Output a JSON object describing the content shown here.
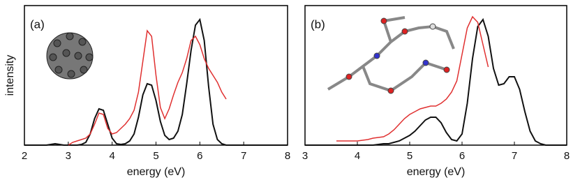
{
  "chart_data": [
    {
      "type": "line",
      "annotation": "(a)",
      "x_label": "energy (eV)",
      "y_label": "intensity",
      "x": [
        2.0,
        2.1,
        2.2,
        2.3,
        2.4,
        2.5,
        2.6,
        2.7,
        2.8,
        2.9,
        3.0,
        3.1,
        3.2,
        3.3,
        3.4,
        3.5,
        3.6,
        3.7,
        3.8,
        3.9,
        4.0,
        4.1,
        4.2,
        4.3,
        4.4,
        4.5,
        4.6,
        4.7,
        4.8,
        4.9,
        5.0,
        5.1,
        5.2,
        5.3,
        5.4,
        5.5,
        5.6,
        5.7,
        5.8,
        5.9,
        6.0,
        6.1,
        6.2,
        6.3,
        6.4,
        6.5,
        6.6,
        6.7,
        6.8,
        6.9,
        7.0,
        7.1,
        7.2,
        7.3,
        7.4,
        7.5,
        7.6,
        7.7,
        7.8,
        7.9,
        8.0
      ],
      "series": [
        {
          "color": "#111111",
          "values": [
            0,
            0,
            0,
            0,
            0,
            0,
            0.005,
            0.01,
            0.005,
            0,
            0,
            0,
            0,
            0.005,
            0.02,
            0.08,
            0.19,
            0.26,
            0.25,
            0.15,
            0.05,
            0.01,
            0.005,
            0.01,
            0.03,
            0.08,
            0.2,
            0.36,
            0.44,
            0.43,
            0.32,
            0.17,
            0.07,
            0.04,
            0.05,
            0.1,
            0.22,
            0.44,
            0.68,
            0.86,
            0.9,
            0.75,
            0.42,
            0.15,
            0.04,
            0.01,
            0,
            0,
            0,
            0,
            0,
            0,
            0,
            0,
            0,
            0,
            0,
            0,
            0,
            0,
            0
          ]
        },
        {
          "color": "#e03030",
          "values": [
            null,
            null,
            null,
            null,
            null,
            null,
            null,
            null,
            null,
            null,
            0.0,
            0.02,
            0.03,
            0.04,
            0.05,
            0.08,
            0.15,
            0.23,
            0.22,
            0.12,
            0.08,
            0.09,
            0.12,
            0.15,
            0.19,
            0.25,
            0.38,
            0.6,
            0.82,
            0.78,
            0.5,
            0.27,
            0.19,
            0.26,
            0.36,
            0.45,
            0.52,
            0.62,
            0.75,
            0.78,
            0.72,
            0.62,
            0.55,
            0.5,
            0.45,
            0.38,
            0.33,
            null,
            null,
            null,
            null,
            null,
            null,
            null,
            null,
            null,
            null,
            null,
            null,
            null,
            null
          ]
        }
      ],
      "xlim": [
        2,
        8
      ],
      "xticks": [
        2,
        3,
        4,
        5,
        6,
        7,
        8
      ],
      "ylim": [
        0,
        1
      ]
    },
    {
      "type": "line",
      "annotation": "(b)",
      "x_label": "energy (eV)",
      "x": [
        3.0,
        3.1,
        3.2,
        3.3,
        3.4,
        3.5,
        3.6,
        3.7,
        3.8,
        3.9,
        4.0,
        4.1,
        4.2,
        4.3,
        4.4,
        4.5,
        4.6,
        4.7,
        4.8,
        4.9,
        5.0,
        5.1,
        5.2,
        5.3,
        5.4,
        5.5,
        5.6,
        5.7,
        5.8,
        5.9,
        6.0,
        6.1,
        6.2,
        6.3,
        6.4,
        6.5,
        6.6,
        6.7,
        6.8,
        6.9,
        7.0,
        7.1,
        7.2,
        7.3,
        7.4,
        7.5,
        7.6,
        7.7,
        7.8,
        7.9,
        8.0
      ],
      "series": [
        {
          "color": "#111111",
          "values": [
            0,
            0,
            0,
            0,
            0,
            0,
            0,
            0,
            0,
            0,
            0,
            0,
            0,
            0,
            0.005,
            0.01,
            0.01,
            0.02,
            0.03,
            0.05,
            0.07,
            0.1,
            0.14,
            0.18,
            0.2,
            0.2,
            0.16,
            0.09,
            0.04,
            0.03,
            0.08,
            0.3,
            0.62,
            0.85,
            0.9,
            0.78,
            0.55,
            0.43,
            0.44,
            0.49,
            0.49,
            0.4,
            0.24,
            0.1,
            0.03,
            0.01,
            0,
            0,
            0,
            0,
            0
          ]
        },
        {
          "color": "#e03030",
          "values": [
            null,
            null,
            null,
            null,
            null,
            null,
            0.03,
            0.03,
            0.03,
            0.03,
            0.03,
            0.035,
            0.04,
            0.05,
            0.055,
            0.06,
            0.08,
            0.11,
            0.15,
            0.19,
            0.22,
            0.24,
            0.26,
            0.27,
            0.28,
            0.28,
            0.3,
            0.33,
            0.38,
            0.46,
            0.65,
            0.84,
            0.92,
            0.88,
            0.72,
            0.56,
            null,
            null,
            null,
            null,
            null,
            null,
            null,
            null,
            null,
            null,
            null,
            null,
            null,
            null,
            null
          ]
        }
      ],
      "xlim": [
        3,
        8
      ],
      "xticks": [
        3,
        4,
        5,
        6,
        7,
        8
      ],
      "ylim": [
        0,
        1
      ]
    }
  ]
}
